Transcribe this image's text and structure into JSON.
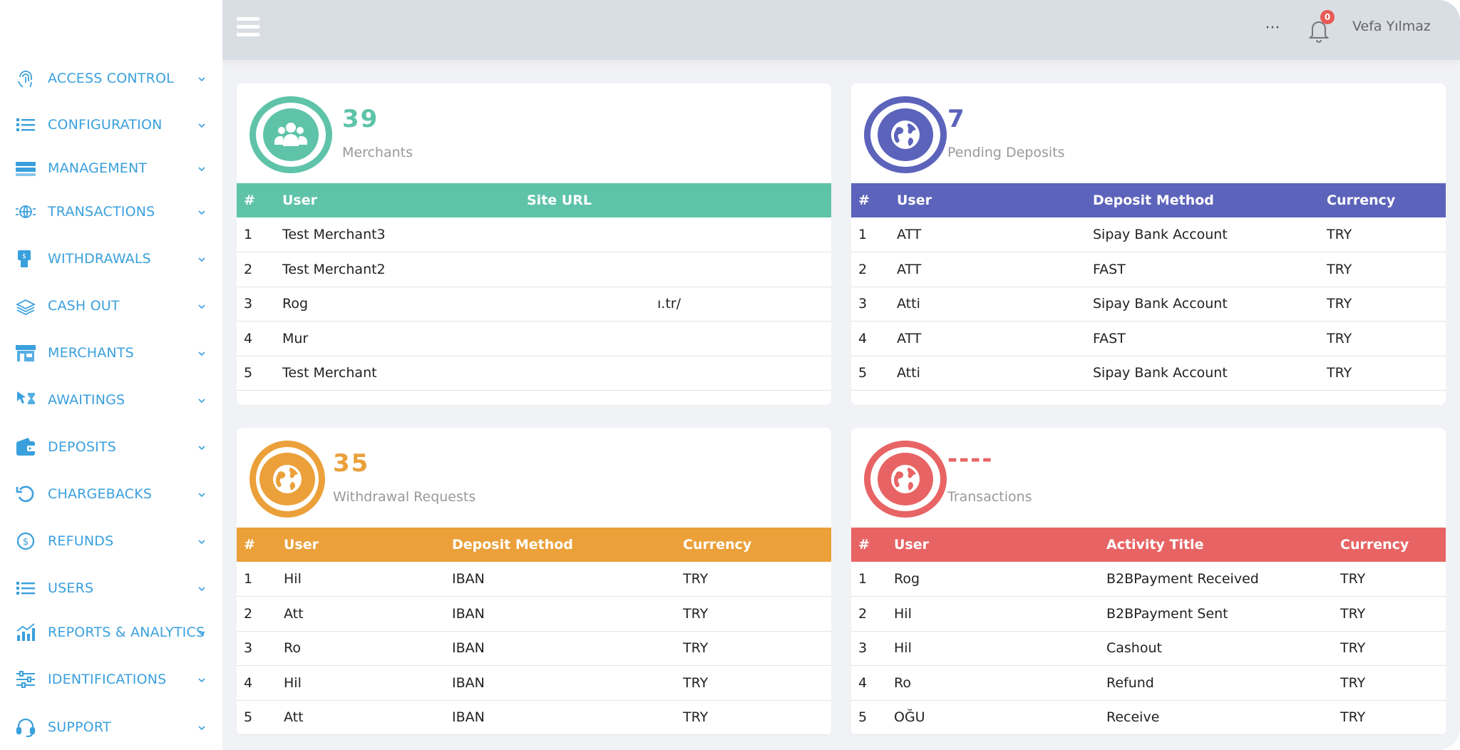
{
  "sidebar": {
    "items": [
      {
        "label": "ACCESS CONTROL",
        "icon": "fingerprint-icon"
      },
      {
        "label": "CONFIGURATION",
        "icon": "list-icon"
      },
      {
        "label": "MANAGEMENT",
        "icon": "server-icon"
      },
      {
        "label": "TRANSACTIONS",
        "icon": "globe-transfer-icon"
      },
      {
        "label": "WITHDRAWALS",
        "icon": "atm-icon"
      },
      {
        "label": "CASH OUT",
        "icon": "money-stack-icon"
      },
      {
        "label": "MERCHANTS",
        "icon": "store-icon"
      },
      {
        "label": "AWAITINGS",
        "icon": "hourglass-cursor-icon"
      },
      {
        "label": "DEPOSITS",
        "icon": "wallet-icon"
      },
      {
        "label": "CHARGEBACKS",
        "icon": "undo-icon"
      },
      {
        "label": "REFUNDS",
        "icon": "refund-icon"
      },
      {
        "label": "USERS",
        "icon": "list-icon"
      },
      {
        "label": "REPORTS & ANALYTICS",
        "icon": "chart-icon"
      },
      {
        "label": "IDENTIFICATIONS",
        "icon": "sliders-icon"
      },
      {
        "label": "SUPPORT",
        "icon": "headset-icon"
      }
    ]
  },
  "header": {
    "more_label": "···",
    "notification_count": "0",
    "username": "Vefa Yılmaz"
  },
  "colors": {
    "merchants": "#5ec3a8",
    "deposits": "#5c63bb",
    "withdrawals": "#eba03a",
    "transactions": "#e86464",
    "nav_text": "#3aa0dd"
  },
  "cards": {
    "merchants": {
      "count": "39",
      "label": "Merchants",
      "columns": [
        "#",
        "User",
        "Site URL"
      ],
      "rows": [
        [
          "1",
          "Test Merchant3",
          ""
        ],
        [
          "2",
          "Test Merchant2",
          ""
        ],
        [
          "3",
          "Rog",
          "ı.tr/"
        ],
        [
          "4",
          "Mur",
          ""
        ],
        [
          "5",
          "Test Merchant",
          ""
        ]
      ]
    },
    "deposits": {
      "count": "7",
      "label": "Pending Deposits",
      "columns": [
        "#",
        "User",
        "Deposit Method",
        "Currency"
      ],
      "rows": [
        [
          "1",
          "ATT",
          "Sipay Bank Account",
          "TRY"
        ],
        [
          "2",
          "ATT",
          "FAST",
          "TRY"
        ],
        [
          "3",
          "Atti",
          "Sipay Bank Account",
          "TRY"
        ],
        [
          "4",
          "ATT",
          "FAST",
          "TRY"
        ],
        [
          "5",
          "Atti",
          "Sipay Bank Account",
          "TRY"
        ]
      ]
    },
    "withdrawals": {
      "count": "35",
      "label": "Withdrawal Requests",
      "columns": [
        "#",
        "User",
        "Deposit Method",
        "Currency"
      ],
      "rows": [
        [
          "1",
          "Hil",
          "IBAN",
          "TRY"
        ],
        [
          "2",
          "Att",
          "IBAN",
          "TRY"
        ],
        [
          "3",
          "Ro",
          "IBAN",
          "TRY"
        ],
        [
          "4",
          "Hil",
          "IBAN",
          "TRY"
        ],
        [
          "5",
          "Att",
          "IBAN",
          "TRY"
        ]
      ]
    },
    "transactions": {
      "count": "----",
      "label": "Transactions",
      "columns": [
        "#",
        "User",
        "Activity Title",
        "Currency"
      ],
      "rows": [
        [
          "1",
          "Rog",
          "B2BPayment Received",
          "TRY"
        ],
        [
          "2",
          "Hil",
          "B2BPayment Sent",
          "TRY"
        ],
        [
          "3",
          "Hil",
          "Cashout",
          "TRY"
        ],
        [
          "4",
          "Ro",
          "Refund",
          "TRY"
        ],
        [
          "5",
          "OĞU",
          "Receive",
          "TRY"
        ]
      ]
    }
  }
}
